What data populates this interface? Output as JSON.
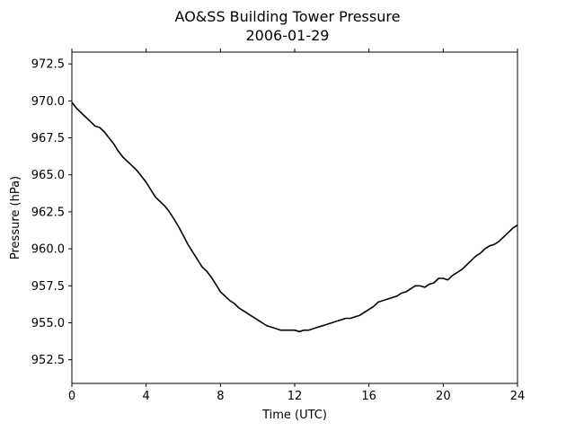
{
  "chart_data": {
    "type": "line",
    "title": "AO&SS Building Tower Pressure",
    "subtitle": "2006-01-29",
    "xlabel": "Time (UTC)",
    "ylabel": "Pressure (hPa)",
    "xlim": [
      0,
      24
    ],
    "ylim": [
      950.9,
      973.3
    ],
    "xticks": [
      "0",
      "4",
      "8",
      "12",
      "16",
      "20",
      "24"
    ],
    "yticks": [
      "952.5",
      "955.0",
      "957.5",
      "960.0",
      "962.5",
      "965.0",
      "967.5",
      "970.0",
      "972.5"
    ],
    "grid": false,
    "series_color": "#000000",
    "series": [
      {
        "x": [
          0,
          0.25,
          0.5,
          0.75,
          1.0,
          1.25,
          1.5,
          1.75,
          2.0,
          2.25,
          2.5,
          2.75,
          3.0,
          3.25,
          3.5,
          3.75,
          4.0,
          4.25,
          4.5,
          4.75,
          5.0,
          5.25,
          5.5,
          5.75,
          6.0,
          6.25,
          6.5,
          6.75,
          7.0,
          7.25,
          7.5,
          7.75,
          8.0,
          8.25,
          8.5,
          8.75,
          9.0,
          9.25,
          9.5,
          9.75,
          10.0,
          10.25,
          10.5,
          10.75,
          11.0,
          11.25,
          11.5,
          11.75,
          12.0,
          12.25,
          12.5,
          12.75,
          13.0,
          13.25,
          13.5,
          13.75,
          14.0,
          14.25,
          14.5,
          14.75,
          15.0,
          15.25,
          15.5,
          15.75,
          16.0,
          16.25,
          16.5,
          16.75,
          17.0,
          17.25,
          17.5,
          17.75,
          18.0,
          18.25,
          18.5,
          18.75,
          19.0,
          19.25,
          19.5,
          19.75,
          20.0,
          20.25,
          20.5,
          20.75,
          21.0,
          21.25,
          21.5,
          21.75,
          22.0,
          22.25,
          22.5,
          22.75,
          23.0,
          23.25,
          23.5,
          23.75,
          24.0
        ],
        "values": [
          969.9,
          969.5,
          969.2,
          968.9,
          968.6,
          968.3,
          968.2,
          967.9,
          967.5,
          967.1,
          966.6,
          966.2,
          965.9,
          965.6,
          965.3,
          964.9,
          964.5,
          964.0,
          963.5,
          963.2,
          962.9,
          962.5,
          962.0,
          961.5,
          960.9,
          960.3,
          959.8,
          959.3,
          958.8,
          958.5,
          958.1,
          957.6,
          957.1,
          956.8,
          956.5,
          956.3,
          956.0,
          955.8,
          955.6,
          955.4,
          955.2,
          955.0,
          954.8,
          954.7,
          954.6,
          954.5,
          954.5,
          954.5,
          954.5,
          954.4,
          954.5,
          954.5,
          954.6,
          954.7,
          954.8,
          954.9,
          955.0,
          955.1,
          955.2,
          955.3,
          955.3,
          955.4,
          955.5,
          955.7,
          955.9,
          956.1,
          956.4,
          956.5,
          956.6,
          956.7,
          956.8,
          957.0,
          957.1,
          957.3,
          957.5,
          957.5,
          957.4,
          957.6,
          957.7,
          958.0,
          958.0,
          957.9,
          958.2,
          958.4,
          958.6,
          958.9,
          959.2,
          959.5,
          959.7,
          960.0,
          960.2,
          960.3,
          960.5,
          960.8,
          961.1,
          961.4,
          961.6
        ]
      }
    ]
  }
}
